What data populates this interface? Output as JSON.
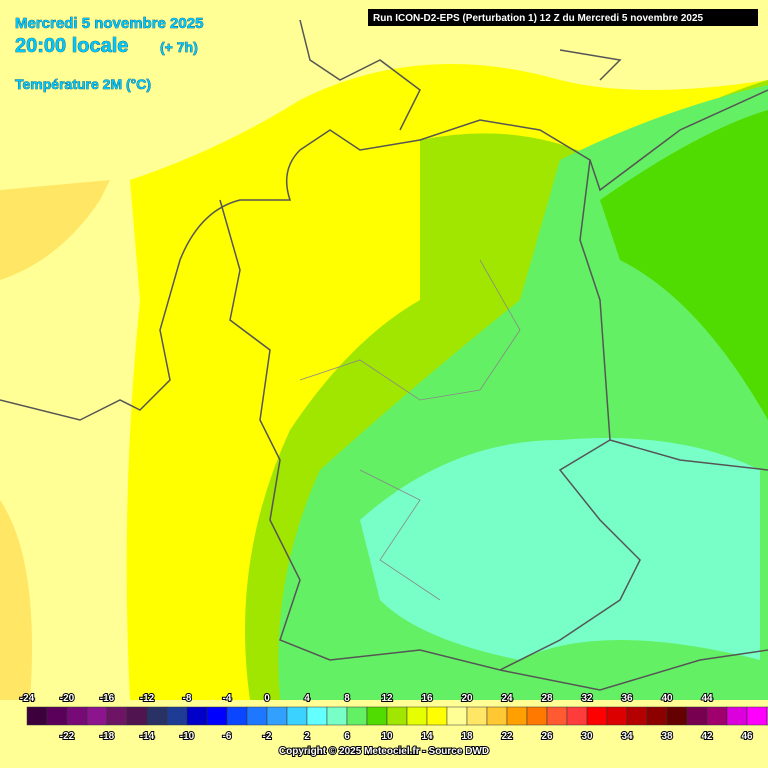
{
  "header": {
    "date": "Mercredi 5 novembre 2025",
    "time": "20:00 locale",
    "offset": "(+ 7h)",
    "parameter": "Température 2M (°C)",
    "run": "Run ICON-D2-EPS (Perturbation 1) 12 Z du Mercredi 5 novembre 2025"
  },
  "legend": [
    {
      "value": -24,
      "color": "#3c003c"
    },
    {
      "value": -22,
      "color": "#5a005a"
    },
    {
      "value": -20,
      "color": "#780a78"
    },
    {
      "value": -18,
      "color": "#8c148c"
    },
    {
      "value": -16,
      "color": "#6e1464"
    },
    {
      "value": -14,
      "color": "#501450"
    },
    {
      "value": -12,
      "color": "#283264"
    },
    {
      "value": -10,
      "color": "#1e3c96"
    },
    {
      "value": -8,
      "color": "#0000c8"
    },
    {
      "value": -6,
      "color": "#0000ff"
    },
    {
      "value": -4,
      "color": "#0a46ff"
    },
    {
      "value": -2,
      "color": "#1e78ff"
    },
    {
      "value": 0,
      "color": "#32a0ff"
    },
    {
      "value": 2,
      "color": "#3cd2ff"
    },
    {
      "value": 4,
      "color": "#64ffff"
    },
    {
      "value": 6,
      "color": "#78ffc8"
    },
    {
      "value": 8,
      "color": "#64f064"
    },
    {
      "value": 10,
      "color": "#50dc00"
    },
    {
      "value": 12,
      "color": "#a0e600"
    },
    {
      "value": 14,
      "color": "#e6ff00"
    },
    {
      "value": 16,
      "color": "#ffff00"
    },
    {
      "value": 18,
      "color": "#ffff96"
    },
    {
      "value": 20,
      "color": "#ffe664"
    },
    {
      "value": 22,
      "color": "#ffc832"
    },
    {
      "value": 24,
      "color": "#ffa000"
    },
    {
      "value": 26,
      "color": "#ff7800"
    },
    {
      "value": 28,
      "color": "#ff5a32"
    },
    {
      "value": 30,
      "color": "#ff3c3c"
    },
    {
      "value": 32,
      "color": "#ff0000"
    },
    {
      "value": 34,
      "color": "#dc0000"
    },
    {
      "value": 36,
      "color": "#b40000"
    },
    {
      "value": 38,
      "color": "#8c0000"
    },
    {
      "value": 40,
      "color": "#640000"
    },
    {
      "value": 42,
      "color": "#780050"
    },
    {
      "value": 44,
      "color": "#a0006e"
    },
    {
      "value": 46,
      "color": "#dc00dc"
    }
  ],
  "extra_colors": [
    "#ff00ff",
    "#ff50ff"
  ],
  "copyright": "Copyright © 2025 Meteociel.fr - Source DWD"
}
